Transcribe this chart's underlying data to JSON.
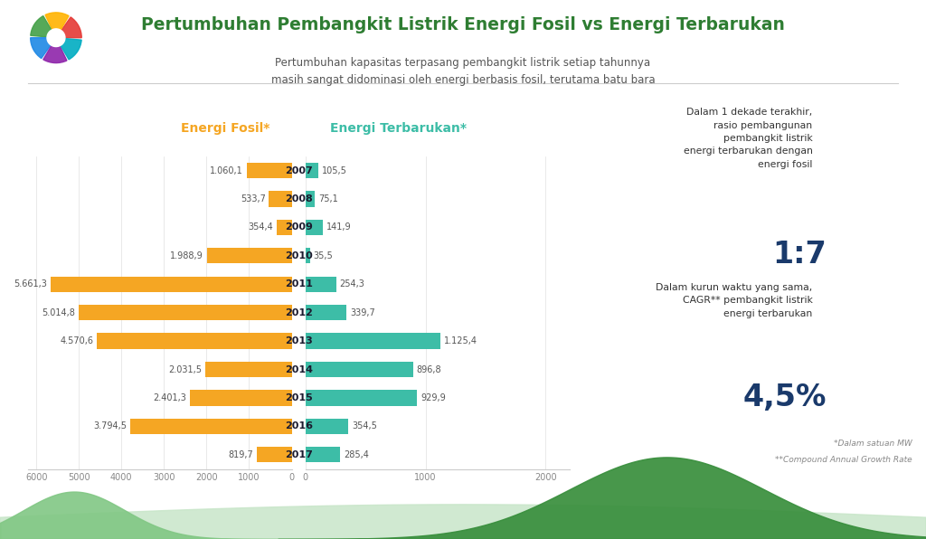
{
  "title": "Pertumbuhan Pembangkit Listrik Energi Fosil vs Energi Terbarukan",
  "subtitle": "Pertumbuhan kapasitas terpasang pembangkit listrik setiap tahunnya\nmasih sangat didominasi oleh energi berbasis fosil, terutama batu bara",
  "years": [
    "2017",
    "2016",
    "2015",
    "2014",
    "2013",
    "2012",
    "2011",
    "2010",
    "2009",
    "2008",
    "2007"
  ],
  "fossil_values": [
    819.7,
    3794.5,
    2401.3,
    2031.5,
    4570.6,
    5014.8,
    5661.3,
    1988.9,
    354.4,
    533.7,
    1060.1
  ],
  "fossil_labels": [
    "819,7",
    "3.794,5",
    "2.401,3",
    "2.031,5",
    "4.570,6",
    "5.014,8",
    "5.661,3",
    "1.988,9",
    "354,4",
    "533,7",
    "1.060,1"
  ],
  "renewable_values": [
    285.4,
    354.5,
    929.9,
    896.8,
    1125.4,
    339.7,
    254.3,
    35.5,
    141.9,
    75.1,
    105.5
  ],
  "renewable_labels": [
    "285,4",
    "354,5",
    "929,9",
    "896,8",
    "1.125,4",
    "339,7",
    "254,3",
    "35,5",
    "141,9",
    "75,1",
    "105,5"
  ],
  "fossil_color": "#F5A623",
  "renewable_color": "#3DBDA7",
  "fossil_label": "Energi Fosil*",
  "renewable_label": "Energi Terbarukan*",
  "title_color": "#2E7D32",
  "subtitle_color": "#555555",
  "year_color": "#1a1a2e",
  "bg_color": "#FFFFFF",
  "annotation1_title": "Dalam 1 dekade terakhir,\nrasio pembangunan\npembangkit listrik\nenergi terbarukan dengan\nenergi fosil",
  "annotation1_value": "1:7",
  "annotation2_title": "Dalam kurun waktu yang sama,\nCAGR** pembangkit listrik\nenergi terbarukan",
  "annotation2_value": "4,5%",
  "footnote1": "*Dalam satuan MW",
  "footnote2": "**Compound Annual Growth Rate",
  "value_color": "#1a3a6b",
  "bar_height": 0.55,
  "fossil_xlim": 6200,
  "renewable_xlim": 2200,
  "fossil_xticks": [
    6000,
    5000,
    4000,
    3000,
    2000,
    1000,
    0
  ],
  "fossil_xtick_labels": [
    "6000",
    "5000",
    "4000",
    "3000",
    "2000",
    "1000",
    "0"
  ],
  "renewable_xticks": [
    0,
    1000,
    2000
  ],
  "renewable_xtick_labels": [
    "0",
    "1000",
    "2000"
  ]
}
